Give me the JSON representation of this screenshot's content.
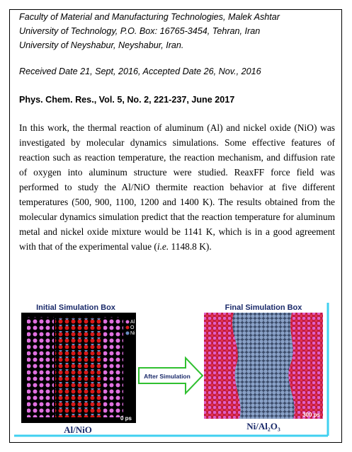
{
  "affiliation": [
    "Faculty of Material and Manufacturing Technologies, Malek Ashtar",
    "University of Technology, P.O. Box: 16765-3454, Tehran, Iran",
    "University of Neyshabur, Neyshabur, Iran."
  ],
  "dates": "Received Date 21, Sept, 2016, Accepted Date 26, Nov., 2016",
  "citation": "Phys. Chem. Res., Vol. 5, No. 2, 221-237, June 2017",
  "abstract": {
    "before": "In this work, the thermal reaction of aluminum (Al) and nickel oxide (NiO) was investigated by molecular dynamics simulations. Some effective features of reaction such as reaction temperature, the reaction mechanism, and diffusion rate of oxygen into aluminum structure were studied. ReaxFF force field was performed to study the Al/NiO thermite reaction behavior at five different temperatures (500, 900, 1100, 1200 and 1400 K). The results obtained from the molecular dynamics simulation predict that the reaction temperature for aluminum metal and nickel oxide mixture would be 1141 K, which is in a good agreement with that of the experimental value (",
    "italic": "i.e.",
    "after": " 1148.8 K)."
  },
  "graphic": {
    "left_title": "Initial Simulation Box",
    "right_title": "Final Simulation Box",
    "legend": [
      "Al",
      "O",
      "Ni"
    ],
    "left_time": "0 ps",
    "right_time": "300 ps",
    "arrow": "After Simulation",
    "left_caption": "Al/NiO",
    "right_caption": "Ni/Al₂O₃"
  }
}
